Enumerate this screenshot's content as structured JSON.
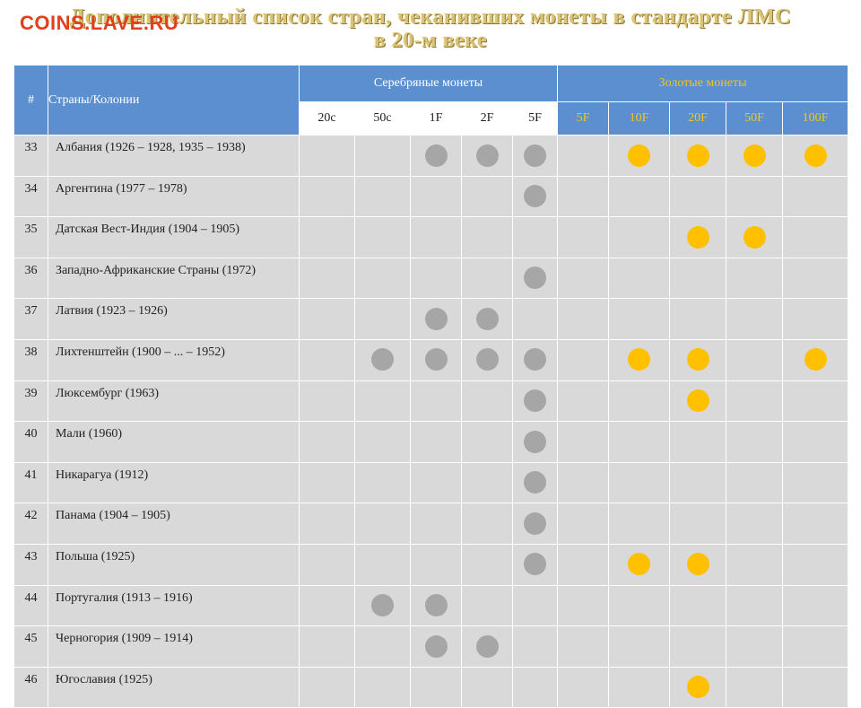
{
  "page": {
    "title_line1": "Дополнительный список стран, чеканивших монеты в стандарте ЛМС",
    "title_line2": "в 20-м веке",
    "watermark": "COINS.LAVE.RU"
  },
  "table": {
    "num_header": "#",
    "country_header": "Страны/Колонии",
    "silver_group": "Серебряные монеты",
    "gold_group": "Золотые монеты",
    "silver_denoms": [
      "20c",
      "50c",
      "1F",
      "2F",
      "5F"
    ],
    "gold_denoms": [
      "5F",
      "10F",
      "20F",
      "50F",
      "100F"
    ],
    "colors": {
      "header_bg": "#5b8fd0",
      "row_bg": "#d9d9d9",
      "silver_dot": "#a6a6a6",
      "gold_dot": "#ffc000",
      "gold_header_text": "#f5c518"
    },
    "rows": [
      {
        "num": "33",
        "country": "Албания (1926 – 1928, 1935 – 1938)",
        "silver": [
          0,
          0,
          1,
          1,
          1
        ],
        "gold": [
          0,
          1,
          1,
          1,
          1
        ]
      },
      {
        "num": "34",
        "country": "Аргентина (1977 – 1978)",
        "silver": [
          0,
          0,
          0,
          0,
          1
        ],
        "gold": [
          0,
          0,
          0,
          0,
          0
        ]
      },
      {
        "num": "35",
        "country": "Датская Вест-Индия (1904 – 1905)",
        "silver": [
          0,
          0,
          0,
          0,
          0
        ],
        "gold": [
          0,
          0,
          1,
          1,
          0
        ]
      },
      {
        "num": "36",
        "country": "Западно-Африканские Страны (1972)",
        "silver": [
          0,
          0,
          0,
          0,
          1
        ],
        "gold": [
          0,
          0,
          0,
          0,
          0
        ]
      },
      {
        "num": "37",
        "country": "Латвия (1923 – 1926)",
        "silver": [
          0,
          0,
          1,
          1,
          0
        ],
        "gold": [
          0,
          0,
          0,
          0,
          0
        ]
      },
      {
        "num": "38",
        "country": "Лихтенштейн (1900 – ... – 1952)",
        "silver": [
          0,
          1,
          1,
          1,
          1
        ],
        "gold": [
          0,
          1,
          1,
          0,
          1
        ]
      },
      {
        "num": "39",
        "country": "Люксембург  (1963)",
        "silver": [
          0,
          0,
          0,
          0,
          1
        ],
        "gold": [
          0,
          0,
          1,
          0,
          0
        ]
      },
      {
        "num": "40",
        "country": "Мали (1960)",
        "silver": [
          0,
          0,
          0,
          0,
          1
        ],
        "gold": [
          0,
          0,
          0,
          0,
          0
        ]
      },
      {
        "num": "41",
        "country": "Никарагуа (1912)",
        "silver": [
          0,
          0,
          0,
          0,
          1
        ],
        "gold": [
          0,
          0,
          0,
          0,
          0
        ]
      },
      {
        "num": "42",
        "country": "Панама (1904 – 1905)",
        "silver": [
          0,
          0,
          0,
          0,
          1
        ],
        "gold": [
          0,
          0,
          0,
          0,
          0
        ]
      },
      {
        "num": "43",
        "country": "Польша (1925)",
        "silver": [
          0,
          0,
          0,
          0,
          1
        ],
        "gold": [
          0,
          1,
          1,
          0,
          0
        ]
      },
      {
        "num": "44",
        "country": "Португалия  (1913 – 1916)",
        "silver": [
          0,
          1,
          1,
          0,
          0
        ],
        "gold": [
          0,
          0,
          0,
          0,
          0
        ]
      },
      {
        "num": "45",
        "country": "Черногория (1909 – 1914)",
        "silver": [
          0,
          0,
          1,
          1,
          0
        ],
        "gold": [
          0,
          0,
          0,
          0,
          0
        ]
      },
      {
        "num": "46",
        "country": "Югославия (1925)",
        "silver": [
          0,
          0,
          0,
          0,
          0
        ],
        "gold": [
          0,
          0,
          1,
          0,
          0
        ]
      }
    ]
  }
}
